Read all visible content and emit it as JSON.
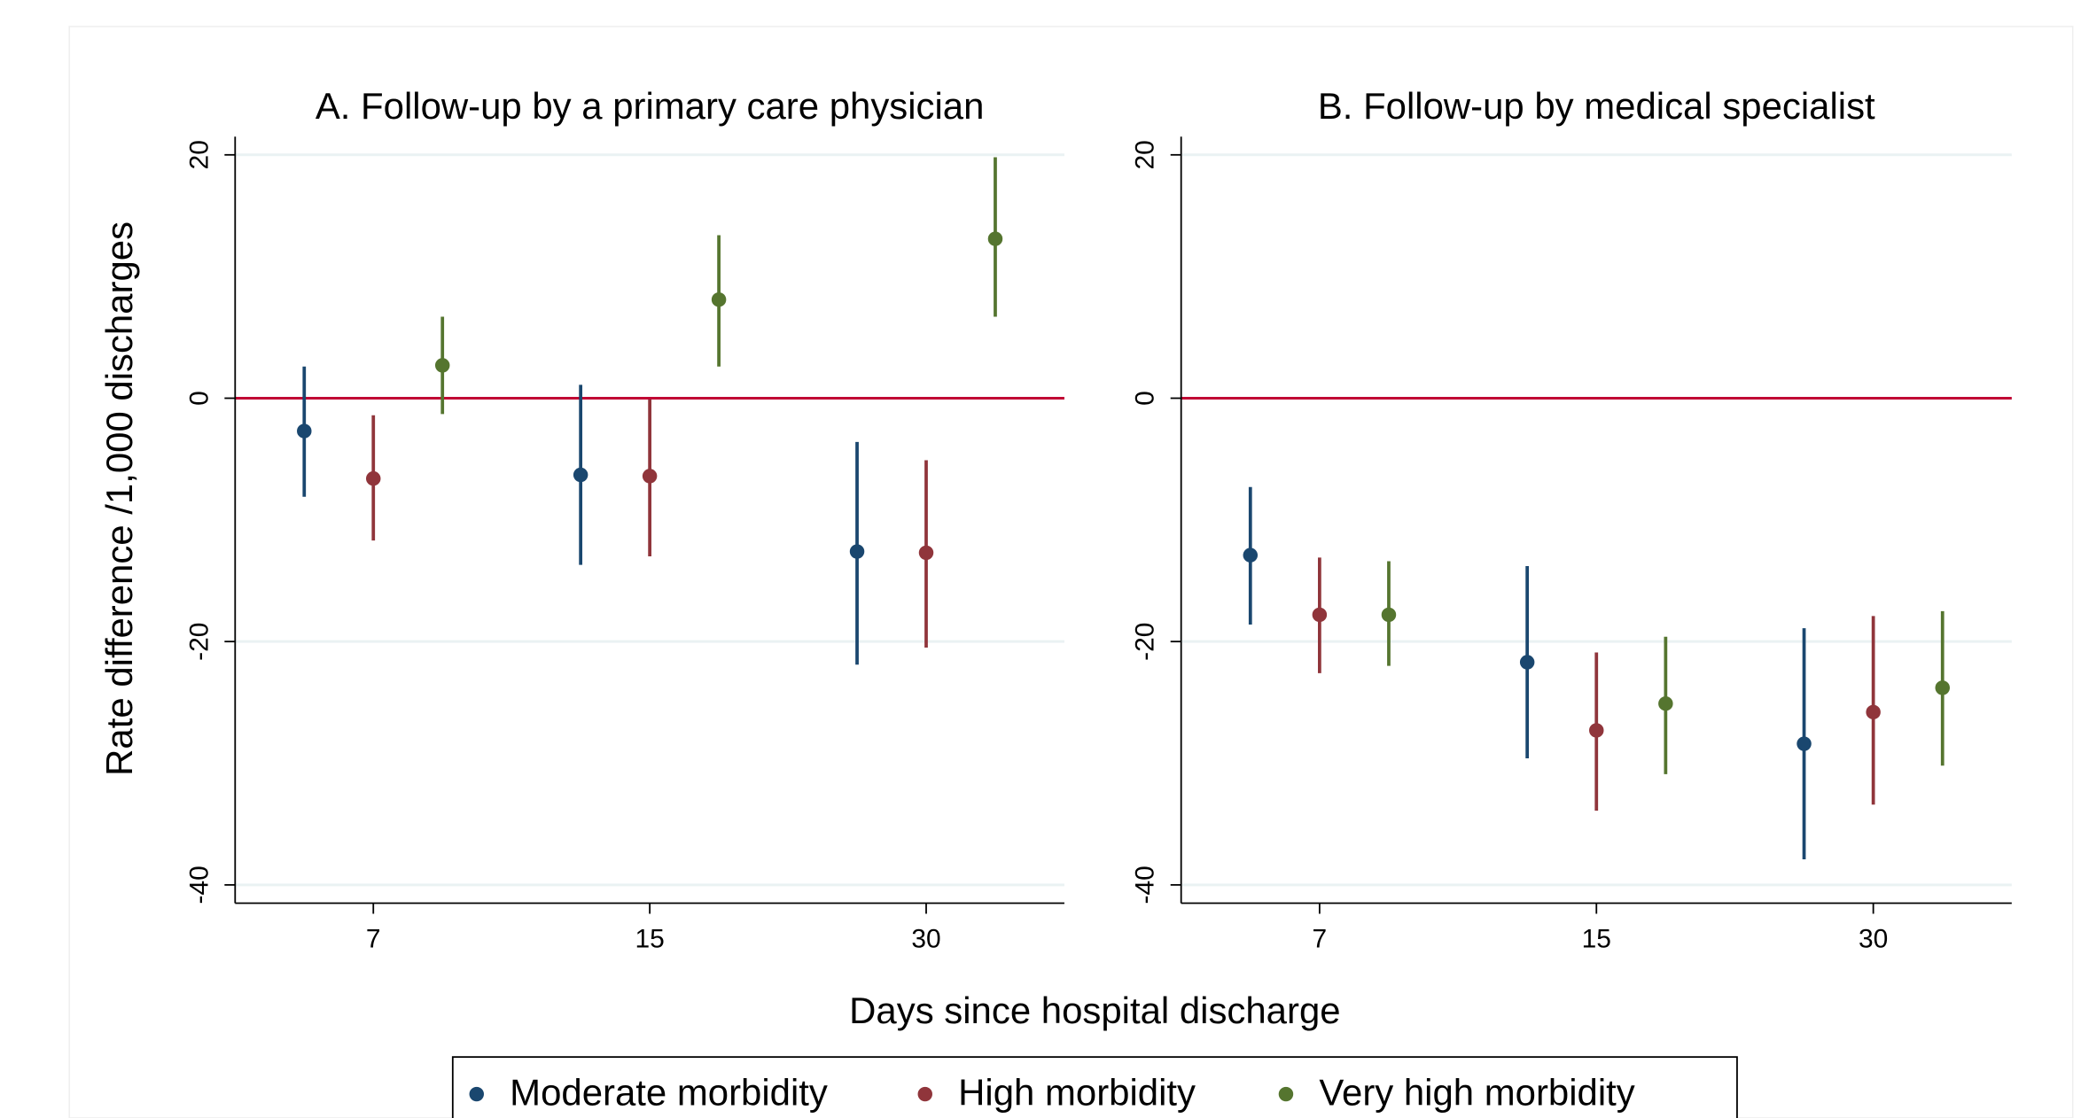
{
  "chart_data": [
    {
      "type": "errorbar",
      "title": "A. Follow-up by a primary care physician",
      "categories": [
        "7",
        "15",
        "30"
      ],
      "ylim": [
        -41.5,
        21.5
      ],
      "yticks": [
        -40,
        -20,
        0,
        20
      ],
      "grid": true,
      "reference_line": 0,
      "reference_color": "#c10534",
      "series": [
        {
          "name": "Moderate morbidity",
          "color": "#1a476f",
          "values": [
            -2.7,
            -6.3,
            -12.6
          ],
          "ci_low": [
            -8.1,
            -13.7,
            -21.9
          ],
          "ci_high": [
            2.6,
            1.1,
            -3.6
          ]
        },
        {
          "name": "High morbidity",
          "color": "#90353b",
          "values": [
            -6.6,
            -6.4,
            -12.7
          ],
          "ci_low": [
            -11.7,
            -13.0,
            -20.5
          ],
          "ci_high": [
            -1.4,
            -0.1,
            -5.1
          ]
        },
        {
          "name": "Very high morbidity",
          "color": "#55752f",
          "values": [
            2.7,
            8.1,
            13.1
          ],
          "ci_low": [
            -1.3,
            2.6,
            6.7
          ],
          "ci_high": [
            6.7,
            13.4,
            19.8
          ]
        }
      ]
    },
    {
      "type": "errorbar",
      "title": "B. Follow-up by medical specialist",
      "categories": [
        "7",
        "15",
        "30"
      ],
      "ylim": [
        -41.5,
        21.5
      ],
      "yticks": [
        -40,
        -20,
        0,
        20
      ],
      "grid": true,
      "reference_line": 0,
      "reference_color": "#c10534",
      "series": [
        {
          "name": "Moderate morbidity",
          "color": "#1a476f",
          "values": [
            -12.9,
            -21.7,
            -28.4
          ],
          "ci_low": [
            -18.6,
            -29.6,
            -37.9
          ],
          "ci_high": [
            -7.3,
            -13.8,
            -18.9
          ]
        },
        {
          "name": "High morbidity",
          "color": "#90353b",
          "values": [
            -17.8,
            -27.3,
            -25.8
          ],
          "ci_low": [
            -22.6,
            -33.9,
            -33.4
          ],
          "ci_high": [
            -13.1,
            -20.9,
            -17.9
          ]
        },
        {
          "name": "Very high morbidity",
          "color": "#55752f",
          "values": [
            -17.8,
            -25.1,
            -23.8
          ],
          "ci_low": [
            -22.0,
            -30.9,
            -30.2
          ],
          "ci_high": [
            -13.4,
            -19.6,
            -17.5
          ]
        }
      ]
    }
  ],
  "x_label": "Days since hospital discharge",
  "y_label": "Rate difference /1,000 discharges"
}
